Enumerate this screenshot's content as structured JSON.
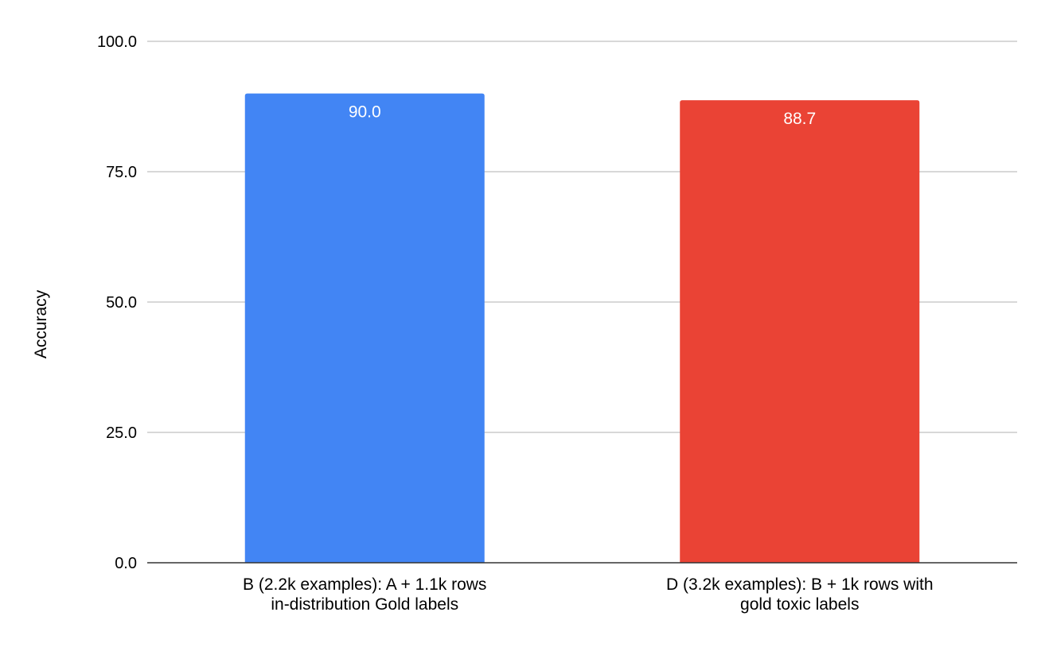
{
  "chart_data": {
    "type": "bar",
    "title": "",
    "xlabel": "",
    "ylabel": "Accuracy",
    "ylim": [
      0,
      100
    ],
    "yticks": [
      "0.0",
      "25.0",
      "50.0",
      "75.0",
      "100.0"
    ],
    "grid": true,
    "legend": "none",
    "categories": [
      [
        "B (2.2k examples): A + 1.1k rows",
        "in-distribution Gold labels"
      ],
      [
        "D (3.2k examples): B + 1k rows with",
        "gold toxic labels"
      ]
    ],
    "values": [
      90.0,
      88.7
    ],
    "data_labels": [
      "90.0",
      "88.7"
    ],
    "colors": [
      "#4285f4",
      "#ea4335"
    ]
  }
}
